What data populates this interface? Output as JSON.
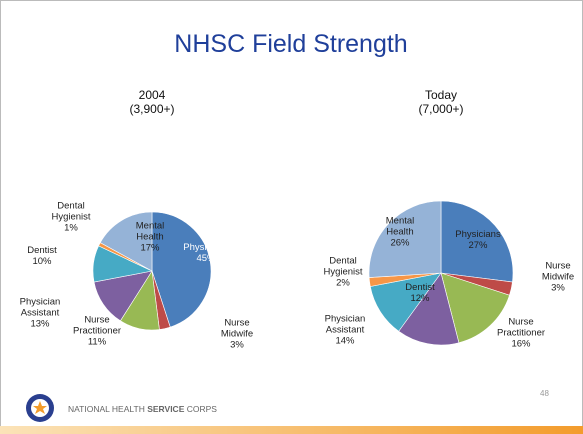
{
  "title": "NHSC Field Strength",
  "chart_data": [
    {
      "type": "pie",
      "title": "2004",
      "subtitle": "(3,900+)",
      "categories": [
        "Physicians",
        "Nurse Midwife",
        "Nurse Practitioner",
        "Physician Assistant",
        "Dentist",
        "Dental Hygienist",
        "Mental Health"
      ],
      "values": [
        45,
        3,
        11,
        13,
        10,
        1,
        17
      ],
      "value_labels": [
        "45%",
        "3%",
        "11%",
        "13%",
        "10%",
        "1%",
        "17%"
      ],
      "colors": [
        "#4a7ebb",
        "#be4b48",
        "#98b954",
        "#7d60a0",
        "#46aac5",
        "#f79646",
        "#95b3d7"
      ]
    },
    {
      "type": "pie",
      "title": "Today",
      "subtitle": "(7,000+)",
      "categories": [
        "Physicians",
        "Nurse Midwife",
        "Nurse Practitioner",
        "Physician Assistant",
        "Dentist",
        "Dental Hygienist",
        "Mental Health"
      ],
      "values": [
        27,
        3,
        16,
        14,
        12,
        2,
        26
      ],
      "value_labels": [
        "27%",
        "3%",
        "16%",
        "14%",
        "12%",
        "2%",
        "26%"
      ],
      "colors": [
        "#4a7ebb",
        "#be4b48",
        "#98b954",
        "#7d60a0",
        "#46aac5",
        "#f79646",
        "#95b3d7"
      ]
    }
  ],
  "footer": {
    "org_parts": [
      "NATIONAL HEALTH ",
      "SERVICE",
      " CORPS"
    ],
    "page": "48"
  }
}
